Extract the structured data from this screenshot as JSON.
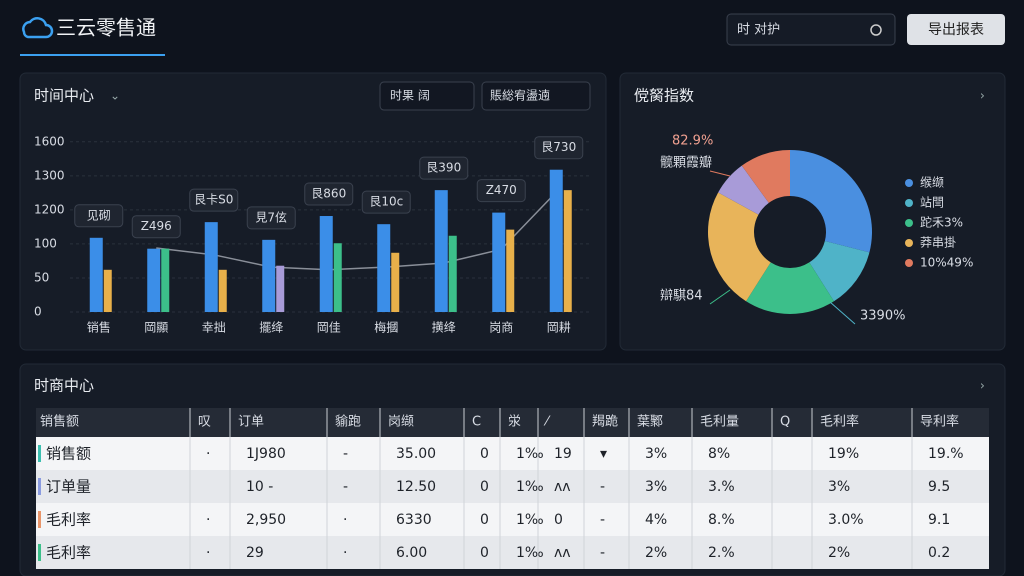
{
  "header": {
    "title": "三云零售通",
    "search": "时  对护",
    "export_button": "导出报表"
  },
  "chart_data": [
    {
      "type": "bar",
      "title": "时间中心",
      "filters": [
        "时果 阔",
        "賬総宥盪遖"
      ],
      "categories": [
        "销售",
        "岡顯",
        "幸拙",
        "擺绛",
        "岡佳",
        "梅摑",
        "撗绛",
        "岗商",
        "岡耕"
      ],
      "ylim": [
        0,
        260
      ],
      "yticks": [
        0,
        50,
        100,
        {
          "value": 150,
          "label": "1200"
        },
        {
          "value": 200,
          "label": "1300"
        },
        {
          "value": 250,
          "label": "1600"
        }
      ],
      "grid": true,
      "series": [
        {
          "color": "#3b8ee8",
          "values": [
            109,
            93,
            132,
            106,
            141,
            129,
            179,
            146,
            209
          ]
        },
        {
          "colors": [
            "#e8b04a",
            "#3cbf8a",
            "#e8b04a",
            "#a89bd8",
            "#3cbf8a",
            "#e8b04a",
            "#3cbf8a",
            "#e8b04a",
            "#e8b04a"
          ],
          "values": [
            62,
            93,
            62,
            68,
            101,
            87,
            112,
            121,
            179
          ]
        },
        {
          "type": "line",
          "color": "#8a8f99",
          "values": [
            null,
            94,
            84,
            66,
            62,
            66,
            72,
            92,
            180
          ]
        }
      ],
      "annotations": [
        "见砌",
        "Z496",
        "艮卡S0",
        "見7伭",
        "艮860",
        "艮10c",
        "艮390",
        "Z470",
        "艮730"
      ]
    },
    {
      "type": "pie",
      "title": "傥胬指数",
      "categories": [
        "缑缬",
        "站閆",
        "跎禾3%",
        "莽串掛",
        null,
        "10%49%"
      ],
      "colors": [
        "#4a8fe0",
        "#4fb3c8",
        "#3cbf8a",
        "#e8b45a",
        "#a89bd8",
        "#e07a5f"
      ],
      "values": [
        29,
        12,
        18,
        24,
        7,
        10
      ],
      "annotations": [
        "82.9%",
        "髋顆霞瓣",
        "辯騏84",
        "3390%"
      ]
    }
  ],
  "table": {
    "title": "时商中心",
    "header": [
      "销售额",
      "叹",
      "订单",
      "貐跑",
      "岗缬",
      "C",
      "泶",
      "⁄",
      "羯跪",
      "葉鄹",
      "毛利量",
      "Q",
      "毛利率",
      "导利率"
    ],
    "rows": [
      {
        "cells": [
          "销售额",
          "·",
          "1J980",
          "-",
          "35.00",
          "0",
          "1‰",
          "19",
          "▾",
          "3%",
          "8%",
          null,
          "19%",
          "19.%"
        ]
      },
      {
        "cells": [
          "订单量",
          null,
          "10  -",
          "-",
          "12.50",
          "0",
          "1‰",
          "ʌʌ",
          "-",
          "3%",
          "3.%",
          null,
          "3%",
          "9.5"
        ]
      },
      {
        "cells": [
          "毛利率",
          "·",
          "2,950",
          "·",
          "6330",
          "0",
          "1‰",
          "0",
          "-",
          "4%",
          "8.%",
          null,
          "3.0%",
          "9.1"
        ]
      },
      {
        "cells": [
          "毛利率",
          "·",
          "29",
          "·",
          "6.00",
          "0",
          "1‰",
          "ʌʌ",
          "-",
          "2%",
          "2.%",
          null,
          "2%",
          "0.2"
        ]
      }
    ]
  }
}
